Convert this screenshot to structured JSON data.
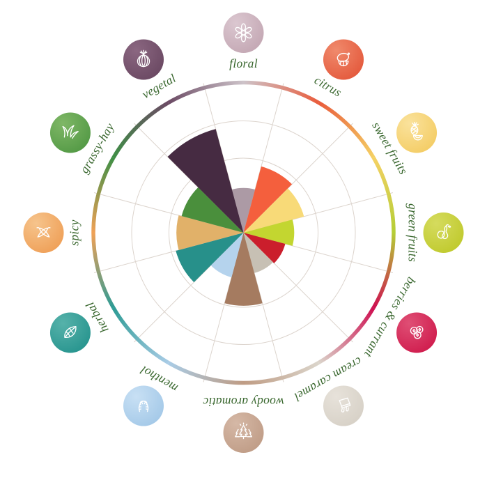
{
  "chart_data": {
    "type": "bar",
    "layout": "polar",
    "title": "",
    "rotation": "first category (floral) centered at 12 o'clock, categories proceed clockwise, 30 degrees each",
    "value_unit": "percent_of_max_radius_estimated",
    "rlim": [
      0,
      100
    ],
    "grid_rings_percent": [
      25,
      50,
      75,
      100
    ],
    "grid": true,
    "legend_position": "none",
    "categories": [
      "floral",
      "citrus",
      "sweet fruits",
      "green fruits",
      "berries & currant",
      "cream caramel",
      "woody aromatic",
      "menthol",
      "herbal",
      "spicy",
      "grassy-hay",
      "vegetal"
    ],
    "values": [
      30,
      46,
      42,
      34,
      29,
      28,
      49,
      31,
      47,
      45,
      43,
      72
    ],
    "segments": [
      {
        "label": "floral",
        "value": 30,
        "wedge_color": "#ac9aa5",
        "ring_color": "#cdc3c9",
        "badge_color": "#c4a8b4",
        "badge_color_light": "#dbc7d0",
        "icon": "flower-icon"
      },
      {
        "label": "citrus",
        "value": 46,
        "wedge_color": "#f45f3d",
        "ring_color": "#e95c3c",
        "badge_color": "#e45a3d",
        "badge_color_light": "#f08a6c",
        "icon": "lemon-icon"
      },
      {
        "label": "sweet fruits",
        "value": 42,
        "wedge_color": "#f8da78",
        "ring_color": "#f5d164",
        "badge_color": "#f4cd66",
        "badge_color_light": "#fae29c",
        "icon": "pineapple-icon"
      },
      {
        "label": "green fruits",
        "value": 34,
        "wedge_color": "#c3d630",
        "ring_color": "#b5ce36",
        "badge_color": "#c0ca2e",
        "badge_color_light": "#d5db5e",
        "icon": "pear-apple-icon"
      },
      {
        "label": "berries & currant",
        "value": 29,
        "wedge_color": "#cb1e2c",
        "ring_color": "#ce0f50",
        "badge_color": "#d01d4e",
        "badge_color_light": "#df4f75",
        "icon": "berries-icon"
      },
      {
        "label": "cream caramel",
        "value": 28,
        "wedge_color": "#c7c0b4",
        "ring_color": "#dbd5cb",
        "badge_color": "#d7d1c7",
        "badge_color_light": "#e7e2da",
        "icon": "flan-icon"
      },
      {
        "label": "woody aromatic",
        "value": 49,
        "wedge_color": "#a57b60",
        "ring_color": "#bf9c84",
        "badge_color": "#c09d87",
        "badge_color_light": "#d5b8a6",
        "icon": "pine-trees-icon"
      },
      {
        "label": "menthol",
        "value": 31,
        "wedge_color": "#b5d3ed",
        "ring_color": "#a9cce6",
        "badge_color": "#a4c9e8",
        "badge_color_light": "#c8e0f4",
        "icon": "candy-canes-icon"
      },
      {
        "label": "herbal",
        "value": 47,
        "wedge_color": "#27908a",
        "ring_color": "#2d9b95",
        "badge_color": "#28958f",
        "badge_color_light": "#56b2aa",
        "icon": "leaf-icon"
      },
      {
        "label": "spicy",
        "value": 45,
        "wedge_color": "#e1b169",
        "ring_color": "#f0a156",
        "badge_color": "#efa058",
        "badge_color_light": "#f6c48c",
        "icon": "chili-icon"
      },
      {
        "label": "grassy-hay",
        "value": 43,
        "wedge_color": "#4a8f3c",
        "ring_color": "#3f8f46",
        "badge_color": "#549a46",
        "badge_color_light": "#7fb766",
        "icon": "grass-icon"
      },
      {
        "label": "vegetal",
        "value": 72,
        "wedge_color": "#462b42",
        "ring_color": "#6b4a64",
        "badge_color": "#6b4963",
        "badge_color_light": "#8b6781",
        "icon": "onion-icon"
      }
    ]
  },
  "style": {
    "background": "#ffffff",
    "label_color": "#39672e",
    "grid_color": "#dcd4cd",
    "icon_stroke": "#ffffff"
  }
}
